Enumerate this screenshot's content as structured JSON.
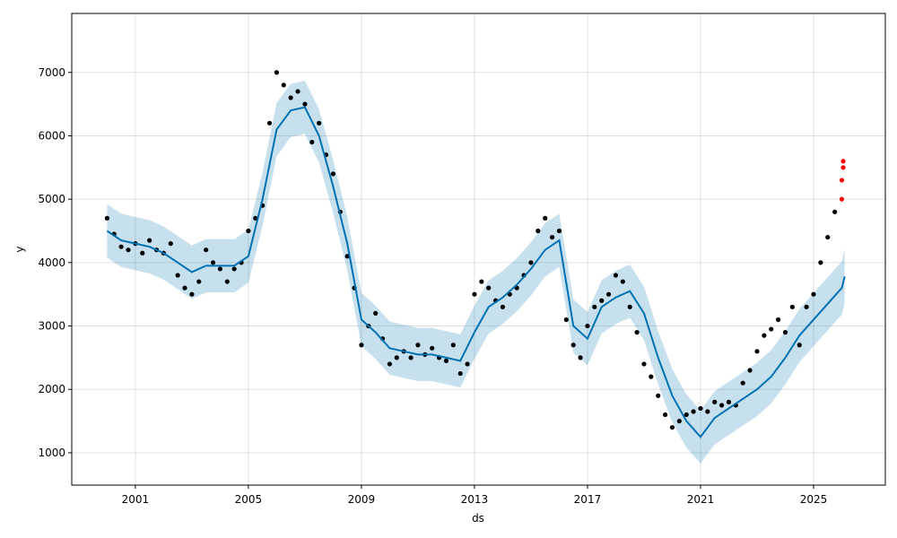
{
  "chart_data": {
    "type": "line",
    "xlabel": "ds",
    "ylabel": "y",
    "xlim": [
      1998.75,
      2027.54
    ],
    "ylim": [
      490,
      7930
    ],
    "xticks": [
      2001,
      2005,
      2009,
      2013,
      2017,
      2021,
      2025
    ],
    "yticks": [
      1000,
      2000,
      3000,
      4000,
      5000,
      6000,
      7000
    ],
    "grid": true,
    "series": [
      {
        "type": "band",
        "color": "#0072b2",
        "x": [
          2000,
          2000.5,
          2001,
          2001.5,
          2002,
          2002.5,
          2003,
          2003.5,
          2004,
          2004.5,
          2005,
          2005.5,
          2006,
          2006.5,
          2007,
          2007.5,
          2008,
          2008.5,
          2009,
          2009.5,
          2010,
          2010.5,
          2011,
          2011.5,
          2012,
          2012.5,
          2013,
          2013.5,
          2014,
          2014.5,
          2015,
          2015.5,
          2016,
          2016.5,
          2017,
          2017.5,
          2018,
          2018.5,
          2019,
          2019.5,
          2020,
          2020.5,
          2021,
          2021.5,
          2022,
          2022.5,
          2023,
          2023.5,
          2024,
          2024.5,
          2025,
          2025.5,
          2026,
          2026.1
        ],
        "lower": [
          4080,
          3930,
          3880,
          3830,
          3730,
          3580,
          3430,
          3530,
          3530,
          3530,
          3680,
          4580,
          5680,
          5980,
          6030,
          5580,
          4780,
          3880,
          2680,
          2480,
          2230,
          2180,
          2130,
          2130,
          2080,
          2030,
          2480,
          2880,
          3030,
          3230,
          3480,
          3780,
          3930,
          2580,
          2380,
          2880,
          3030,
          3130,
          2780,
          2080,
          1480,
          1080,
          830,
          1130,
          1280,
          1430,
          1580,
          1780,
          2080,
          2430,
          2680,
          2930,
          3180,
          3360
        ],
        "upper": [
          4920,
          4770,
          4720,
          4670,
          4570,
          4420,
          4270,
          4370,
          4370,
          4370,
          4520,
          5420,
          6520,
          6820,
          6870,
          6420,
          5620,
          4720,
          3520,
          3320,
          3070,
          3020,
          2970,
          2970,
          2920,
          2870,
          3320,
          3720,
          3870,
          4070,
          4320,
          4620,
          4770,
          3420,
          3220,
          3720,
          3870,
          3970,
          3620,
          2920,
          2320,
          1920,
          1670,
          1970,
          2120,
          2270,
          2420,
          2620,
          2920,
          3270,
          3520,
          3770,
          4020,
          4200
        ]
      },
      {
        "type": "scatter",
        "color": "#000000",
        "x": [
          2000,
          2000.25,
          2000.5,
          2000.75,
          2001,
          2001.25,
          2001.5,
          2001.75,
          2002,
          2002.25,
          2002.5,
          2002.75,
          2003,
          2003.25,
          2003.5,
          2003.75,
          2004,
          2004.25,
          2004.5,
          2004.75,
          2005,
          2005.25,
          2005.5,
          2005.75,
          2006,
          2006.25,
          2006.5,
          2006.75,
          2007,
          2007.25,
          2007.5,
          2007.75,
          2008,
          2008.25,
          2008.5,
          2008.75,
          2009,
          2009.25,
          2009.5,
          2009.75,
          2010,
          2010.25,
          2010.5,
          2010.75,
          2011,
          2011.25,
          2011.5,
          2011.75,
          2012,
          2012.25,
          2012.5,
          2012.75,
          2013,
          2013.25,
          2013.5,
          2013.75,
          2014,
          2014.25,
          2014.5,
          2014.75,
          2015,
          2015.25,
          2015.5,
          2015.75,
          2016,
          2016.25,
          2016.5,
          2016.75,
          2017,
          2017.25,
          2017.5,
          2017.75,
          2018,
          2018.25,
          2018.5,
          2018.75,
          2019,
          2019.25,
          2019.5,
          2019.75,
          2020,
          2020.25,
          2020.5,
          2020.75,
          2021,
          2021.25,
          2021.5,
          2021.75,
          2022,
          2022.25,
          2022.5,
          2022.75,
          2023,
          2023.25,
          2023.5,
          2023.75,
          2024,
          2024.25,
          2024.5,
          2024.75,
          2025,
          2025.25,
          2025.5,
          2025.75
        ],
        "values": [
          4700,
          4450,
          4250,
          4200,
          4300,
          4150,
          4350,
          4200,
          4150,
          4300,
          3800,
          3600,
          3500,
          3700,
          4200,
          4000,
          3900,
          3700,
          3900,
          4000,
          4500,
          4700,
          4900,
          6200,
          7000,
          6800,
          6600,
          6700,
          6500,
          5900,
          6200,
          5700,
          5400,
          4800,
          4100,
          3600,
          2700,
          3000,
          3200,
          2800,
          2400,
          2500,
          2600,
          2500,
          2700,
          2550,
          2650,
          2500,
          2450,
          2700,
          2250,
          2400,
          3500,
          3700,
          3600,
          3400,
          3300,
          3500,
          3600,
          3800,
          4000,
          4500,
          4700,
          4400,
          4500,
          3100,
          2700,
          2500,
          3000,
          3300,
          3400,
          3500,
          3800,
          3700,
          3300,
          2900,
          2400,
          2200,
          1900,
          1600,
          1400,
          1500,
          1600,
          1650,
          1700,
          1650,
          1800,
          1750,
          1800,
          1750,
          2100,
          2300,
          2600,
          2850,
          2950,
          3100,
          2900,
          3300,
          2700,
          3300,
          3500,
          4000,
          4400,
          4800
        ]
      },
      {
        "type": "line",
        "color": "#0072b2",
        "x": [
          2000,
          2000.5,
          2001,
          2001.5,
          2002,
          2002.5,
          2003,
          2003.5,
          2004,
          2004.5,
          2005,
          2005.5,
          2006,
          2006.5,
          2007,
          2007.5,
          2008,
          2008.5,
          2009,
          2009.5,
          2010,
          2010.5,
          2011,
          2011.5,
          2012,
          2012.5,
          2013,
          2013.5,
          2014,
          2014.5,
          2015,
          2015.5,
          2016,
          2016.5,
          2017,
          2017.5,
          2018,
          2018.5,
          2019,
          2019.5,
          2020,
          2020.5,
          2021,
          2021.5,
          2022,
          2022.5,
          2023,
          2023.5,
          2024,
          2024.5,
          2025,
          2025.5,
          2026,
          2026.1
        ],
        "values": [
          4500,
          4350,
          4300,
          4250,
          4150,
          4000,
          3850,
          3950,
          3950,
          3950,
          4100,
          5000,
          6100,
          6400,
          6450,
          6000,
          5200,
          4300,
          3100,
          2900,
          2650,
          2600,
          2550,
          2550,
          2500,
          2450,
          2900,
          3300,
          3450,
          3650,
          3900,
          4200,
          4350,
          3000,
          2800,
          3300,
          3450,
          3550,
          3200,
          2500,
          1900,
          1500,
          1250,
          1550,
          1700,
          1850,
          2000,
          2200,
          2500,
          2850,
          3100,
          3350,
          3600,
          3780
        ]
      },
      {
        "type": "scatter",
        "color": "#ff0000",
        "x": [
          2026,
          2026,
          2026.05,
          2026.05
        ],
        "values": [
          5000,
          5300,
          5500,
          5600
        ]
      }
    ]
  }
}
